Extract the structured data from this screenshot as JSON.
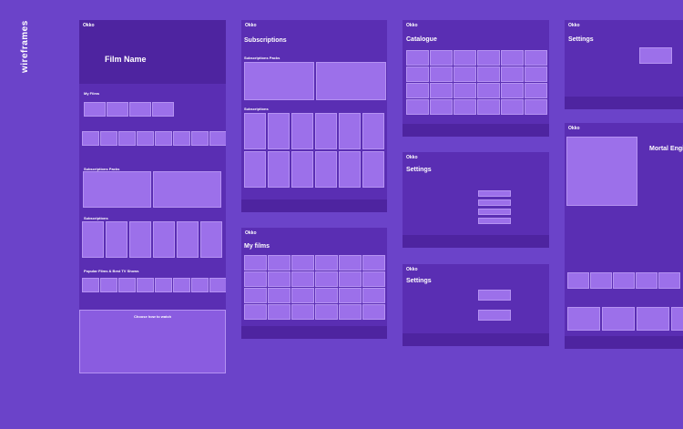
{
  "sidebar_label": "wireframes",
  "screens": [
    {
      "logo": "Okko",
      "title": "Film Name",
      "sections": [
        "My Films",
        "Subscriptions Packs",
        "Subscriptions",
        "Popular Films & Best TV Shows",
        "Choose how to watch"
      ]
    },
    {
      "logo": "Okko",
      "title": "Subscriptions",
      "sections": [
        "Subscriptions Packs",
        "Subscriptions"
      ]
    },
    {
      "logo": "Okko",
      "title": "My films",
      "sections": []
    },
    {
      "logo": "Okko",
      "title": "Catalogue",
      "sections": []
    },
    {
      "logo": "Okko",
      "title": "Settings",
      "sections": []
    },
    {
      "logo": "Okko",
      "title": "Settings",
      "sections": []
    },
    {
      "logo": "Okko",
      "title": "Settings",
      "sections": []
    },
    {
      "logo": "Okko",
      "title": "Mortal Engines",
      "sections": []
    }
  ]
}
